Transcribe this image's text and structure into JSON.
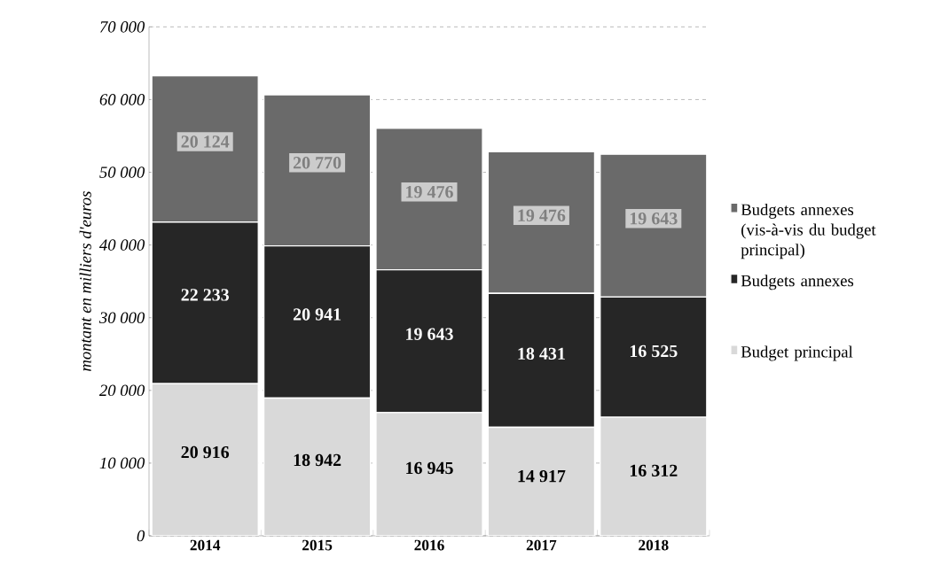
{
  "chart_data": {
    "type": "bar",
    "stacked": true,
    "ylabel": "montant en milliers d'euros",
    "categories": [
      "2014",
      "2015",
      "2016",
      "2017",
      "2018"
    ],
    "series": [
      {
        "name": "Budget principal",
        "color": "#d9d9d9",
        "values": [
          20916,
          18942,
          16945,
          14917,
          16312
        ],
        "value_labels": [
          "20 916",
          "18 942",
          "16 945",
          "14 917",
          "16 312"
        ]
      },
      {
        "name": "Budgets annexes",
        "color": "#262626",
        "values": [
          22233,
          20941,
          19643,
          18431,
          16525
        ],
        "value_labels": [
          "22 233",
          "20 941",
          "19 643",
          "18 431",
          "16 525"
        ]
      },
      {
        "name": "Budgets annexes (vis-à-vis du budget principal)",
        "color": "#6a6a6a",
        "values": [
          20124,
          20770,
          19476,
          19476,
          19643
        ],
        "value_labels": [
          "20 124",
          "20 770",
          "19 476",
          "19 476",
          "19 643"
        ]
      }
    ],
    "ylim": [
      0,
      70000
    ],
    "yticks": [
      {
        "value": 0,
        "label": "0"
      },
      {
        "value": 10000,
        "label": "10 000"
      },
      {
        "value": 20000,
        "label": "20 000"
      },
      {
        "value": 30000,
        "label": "30 000"
      },
      {
        "value": 40000,
        "label": "40 000"
      },
      {
        "value": 50000,
        "label": "50 000"
      },
      {
        "value": 60000,
        "label": "60 000"
      },
      {
        "value": 70000,
        "label": "70 000"
      }
    ],
    "grid": "y",
    "legend": "right"
  }
}
